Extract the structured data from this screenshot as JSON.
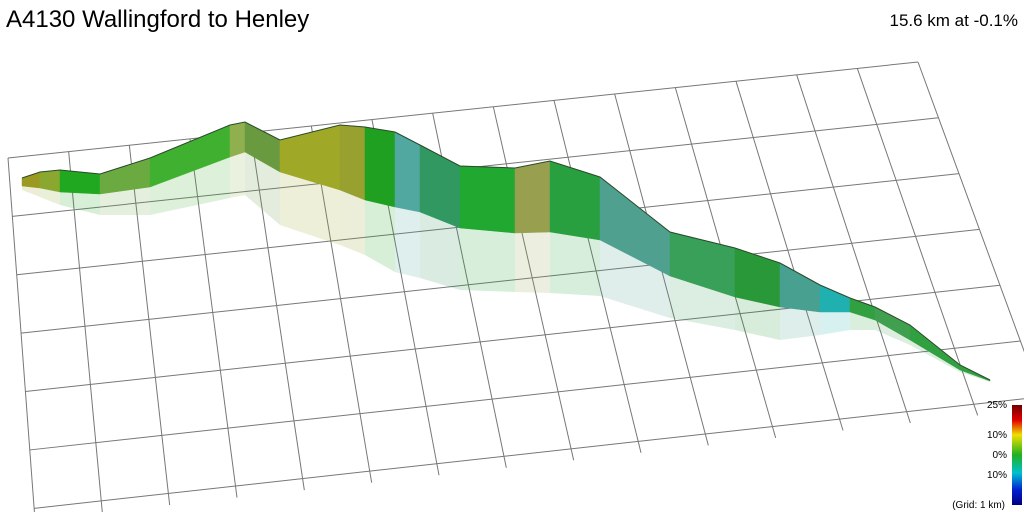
{
  "header": {
    "title": "A4130 Wallingford to Henley",
    "summary": "15.6 km at -0.1%"
  },
  "legend": {
    "labels": [
      "25%",
      "10%",
      "0%",
      "10%"
    ],
    "note": "(Grid: 1 km)"
  }
}
